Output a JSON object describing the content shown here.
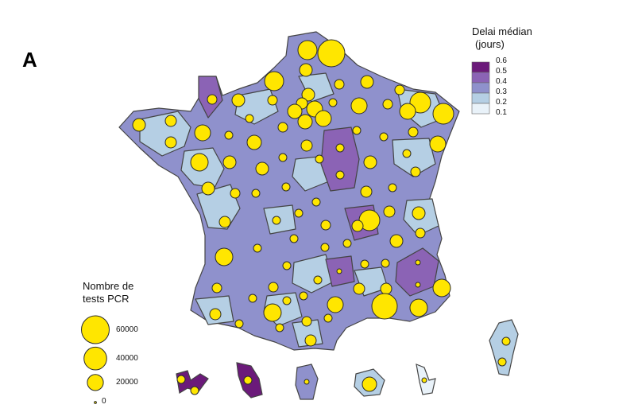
{
  "panel_label": "A",
  "color_legend": {
    "title_line1": "Delai médian",
    "title_line2": "(jours)",
    "ticks": [
      "0.6",
      "0.5",
      "0.4",
      "0.3",
      "0.2",
      "0.1"
    ],
    "classes": [
      {
        "range": "0.5–0.6",
        "color": "#6b1a7a"
      },
      {
        "range": "0.4–0.5",
        "color": "#8b63b5"
      },
      {
        "range": "0.3–0.4",
        "color": "#8f91cc"
      },
      {
        "range": "0.2–0.3",
        "color": "#b5cfe4"
      },
      {
        "range": "0.1–0.2",
        "color": "#e9f2f9"
      }
    ]
  },
  "size_legend": {
    "title_line1": "Nombre de",
    "title_line2": "tests PCR",
    "items": [
      {
        "label": "60000",
        "value": 60000
      },
      {
        "label": "40000",
        "value": 40000
      },
      {
        "label": "20000",
        "value": 20000
      },
      {
        "label": "0",
        "value": 0
      }
    ]
  },
  "colors": {
    "bubble_fill": "#ffe600",
    "bubble_stroke": "#2b2b2b",
    "region_stroke": "#444444"
  }
}
